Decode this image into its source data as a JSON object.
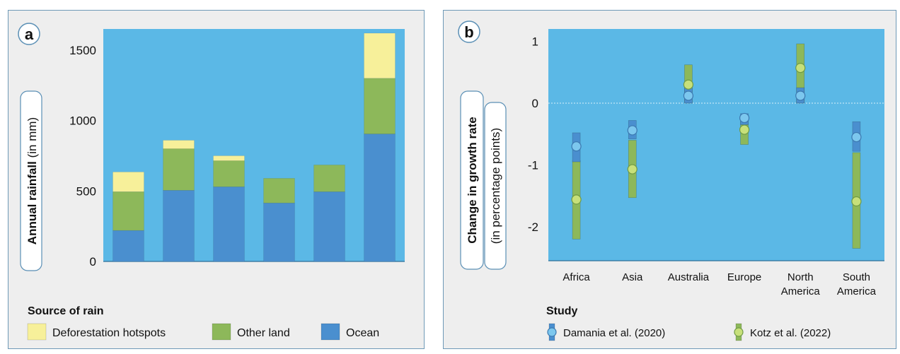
{
  "colors": {
    "plot_bg": "#5bb8e6",
    "panel_bg": "#eeeeee",
    "border": "#6e99b7",
    "deforestation": "#f7f09a",
    "other_land": "#8db85a",
    "ocean": "#4a8fcf",
    "damania": "#4a8fcf",
    "kotz": "#8db85a",
    "damania_point": "#7cc7ee",
    "kotz_point": "#c7e07a"
  },
  "chart_data": [
    {
      "type": "bar",
      "panel_label": "a",
      "stacked": true,
      "categories": [
        "",
        "",
        "",
        "",
        "",
        ""
      ],
      "series": [
        {
          "name": "Ocean",
          "values": [
            220,
            505,
            530,
            415,
            495,
            905
          ]
        },
        {
          "name": "Other land",
          "values": [
            275,
            295,
            185,
            175,
            190,
            395
          ]
        },
        {
          "name": "Deforestation hotspots",
          "values": [
            140,
            60,
            35,
            0,
            0,
            320
          ]
        }
      ],
      "ylabel_bold": "Annual rainfall",
      "ylabel_light": "(in mm)",
      "yticks": [
        0,
        500,
        1000,
        1500
      ],
      "ylim": [
        0,
        1650
      ],
      "legend_title": "Source of rain",
      "legend_position": "bottom",
      "legend": [
        "Deforestation hotspots",
        "Other land",
        "Ocean"
      ]
    },
    {
      "type": "scatter",
      "panel_label": "b",
      "categories": [
        "Africa",
        "Asia",
        "Australia",
        "Europe",
        "North America",
        "South America"
      ],
      "category_lines": [
        [
          "Africa"
        ],
        [
          "Asia"
        ],
        [
          "Australia"
        ],
        [
          "Europe"
        ],
        [
          "North",
          "America"
        ],
        [
          "South",
          "America"
        ]
      ],
      "series": [
        {
          "name": "Damania et al. (2020)",
          "values": [
            -0.7,
            -0.44,
            0.12,
            -0.24,
            0.12,
            -0.55
          ],
          "low": [
            -0.95,
            -0.58,
            0.0,
            -0.35,
            0.0,
            -0.78
          ],
          "high": [
            -0.48,
            -0.28,
            0.25,
            -0.17,
            0.25,
            -0.3
          ]
        },
        {
          "name": "Kotz et al. (2022)",
          "values": [
            -1.56,
            -1.07,
            0.3,
            -0.43,
            0.57,
            -1.59
          ],
          "low": [
            -2.2,
            -1.53,
            0.0,
            -0.67,
            0.0,
            -2.35
          ],
          "high": [
            -0.93,
            -0.6,
            0.62,
            -0.22,
            0.96,
            -0.8
          ]
        }
      ],
      "ylabel_bold": "Change in growth rate",
      "ylabel_light": "(in percentage points)",
      "yticks": [
        1,
        0,
        -1,
        -2
      ],
      "ylim": [
        -2.55,
        1.2
      ],
      "zero_line": true,
      "legend_title": "Study",
      "legend_position": "bottom",
      "legend": [
        "Damania et al. (2020)",
        "Kotz et al. (2022)"
      ]
    }
  ]
}
